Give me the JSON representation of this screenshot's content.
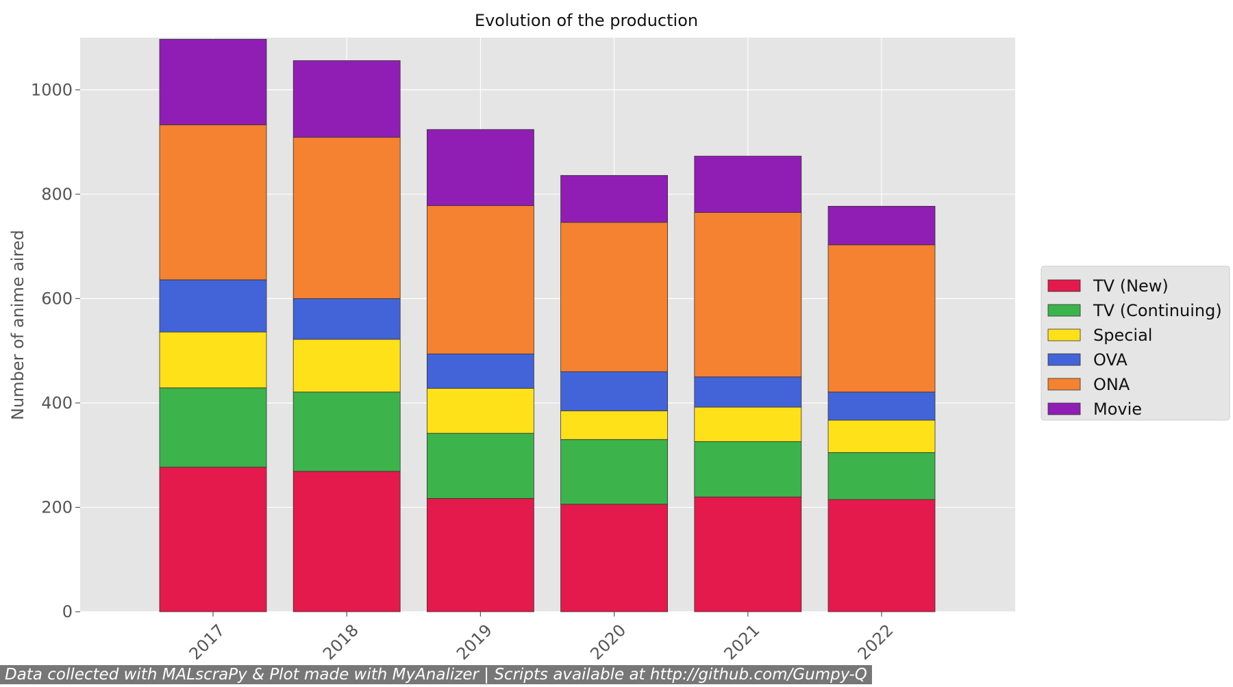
{
  "chart_data": {
    "type": "bar",
    "stacked": true,
    "title": "Evolution of the production",
    "xlabel": "",
    "ylabel": "Number of anime aired",
    "ylim": [
      0,
      1100
    ],
    "yticks": [
      0,
      200,
      400,
      600,
      800,
      1000
    ],
    "grid": true,
    "legend_position": "right",
    "categories": [
      "2017",
      "2018",
      "2019",
      "2020",
      "2021",
      "2022"
    ],
    "series": [
      {
        "name": "TV (New)",
        "color": "#e31a4b",
        "values": [
          277,
          269,
          217,
          206,
          220,
          215
        ]
      },
      {
        "name": "TV (Continuing)",
        "color": "#3cb44b",
        "values": [
          152,
          152,
          125,
          124,
          106,
          90
        ]
      },
      {
        "name": "Special",
        "color": "#ffe119",
        "values": [
          107,
          101,
          86,
          55,
          66,
          62
        ]
      },
      {
        "name": "OVA",
        "color": "#4363d8",
        "values": [
          100,
          78,
          66,
          75,
          58,
          54
        ]
      },
      {
        "name": "ONA",
        "color": "#f58231",
        "values": [
          297,
          309,
          284,
          286,
          315,
          282
        ]
      },
      {
        "name": "Movie",
        "color": "#911eb4",
        "values": [
          164,
          147,
          146,
          90,
          108,
          74
        ]
      }
    ]
  },
  "footer": {
    "credit": "Data collected with MALscraPy & Plot made with MyAnalizer | Scripts available at http://github.com/Gumpy-Q"
  }
}
